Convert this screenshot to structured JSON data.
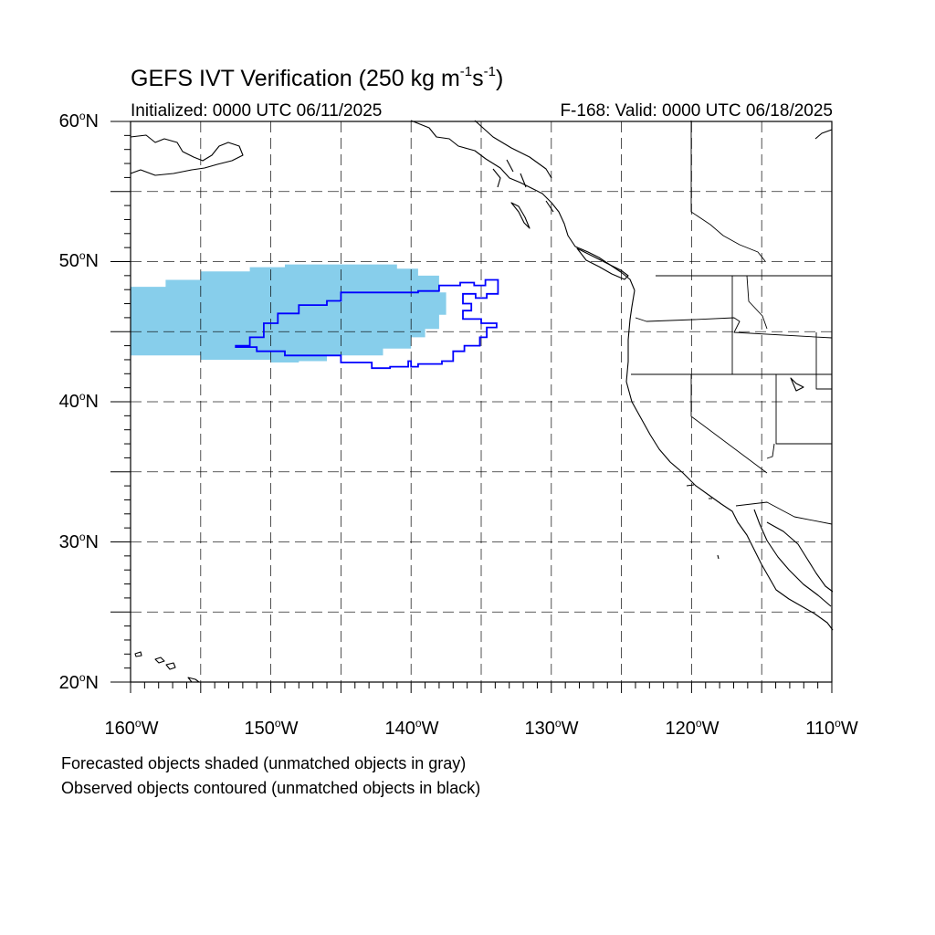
{
  "title": {
    "prefix": "GEFS IVT Verification (250 kg m",
    "exp1": "-1",
    "mid": "s",
    "exp2": "-1",
    "suffix": ")"
  },
  "subtitle": {
    "initialized": "Initialized: 0000 UTC 06/11/2025",
    "valid": "F-168: Valid: 0000 UTC 06/18/2025"
  },
  "map": {
    "lon_range": [
      -160,
      -110
    ],
    "lat_range": [
      20,
      60
    ],
    "grid": "dashed",
    "lat_labels": [
      {
        "num": "60",
        "hemi": "N"
      },
      {
        "num": "50",
        "hemi": "N"
      },
      {
        "num": "40",
        "hemi": "N"
      },
      {
        "num": "30",
        "hemi": "N"
      },
      {
        "num": "20",
        "hemi": "N"
      }
    ],
    "lon_labels": [
      {
        "num": "160",
        "hemi": "W"
      },
      {
        "num": "150",
        "hemi": "W"
      },
      {
        "num": "140",
        "hemi": "W"
      },
      {
        "num": "130",
        "hemi": "W"
      },
      {
        "num": "120",
        "hemi": "W"
      },
      {
        "num": "110",
        "hemi": "W"
      }
    ],
    "forecast_object_color": "#87ceeb",
    "observed_contour_color": "#0000ff",
    "coastline_color": "#000000",
    "forecast_object_lonlat": [
      [
        -160,
        48.2
      ],
      [
        -157.5,
        48.2
      ],
      [
        -157.5,
        48.7
      ],
      [
        -155,
        48.7
      ],
      [
        -155,
        49.3
      ],
      [
        -151.5,
        49.3
      ],
      [
        -151.5,
        49.6
      ],
      [
        -149,
        49.6
      ],
      [
        -149,
        49.8
      ],
      [
        -141,
        49.8
      ],
      [
        -141,
        49.5
      ],
      [
        -139.5,
        49.5
      ],
      [
        -139.5,
        49.0
      ],
      [
        -138,
        49.0
      ],
      [
        -138,
        47.8
      ],
      [
        -137.5,
        47.8
      ],
      [
        -137.5,
        46.2
      ],
      [
        -138,
        46.2
      ],
      [
        -138,
        45.2
      ],
      [
        -139,
        45.2
      ],
      [
        -139,
        44.6
      ],
      [
        -140,
        44.6
      ],
      [
        -140,
        43.8
      ],
      [
        -142,
        43.8
      ],
      [
        -142,
        43.3
      ],
      [
        -146,
        43.3
      ],
      [
        -146,
        42.9
      ],
      [
        -148,
        42.9
      ],
      [
        -148,
        42.8
      ],
      [
        -150,
        42.8
      ],
      [
        -150,
        43.0
      ],
      [
        -155,
        43.0
      ],
      [
        -155,
        43.3
      ],
      [
        -160,
        43.3
      ]
    ],
    "observed_object_lonlat": [
      [
        -152.5,
        44.0
      ],
      [
        -151.5,
        44.0
      ],
      [
        -151.5,
        44.6
      ],
      [
        -150.5,
        44.6
      ],
      [
        -150.5,
        45.6
      ],
      [
        -149.5,
        45.6
      ],
      [
        -149.5,
        46.3
      ],
      [
        -148.0,
        46.3
      ],
      [
        -148.0,
        46.9
      ],
      [
        -146.0,
        46.9
      ],
      [
        -146.0,
        47.2
      ],
      [
        -145.0,
        47.2
      ],
      [
        -145.0,
        47.8
      ],
      [
        -139.5,
        47.8
      ],
      [
        -139.5,
        47.9
      ],
      [
        -138.0,
        47.9
      ],
      [
        -138.0,
        48.3
      ],
      [
        -136.5,
        48.3
      ],
      [
        -136.5,
        48.5
      ],
      [
        -135.5,
        48.5
      ],
      [
        -135.5,
        48.3
      ],
      [
        -134.7,
        48.3
      ],
      [
        -134.7,
        48.7
      ],
      [
        -133.8,
        48.7
      ],
      [
        -133.8,
        47.7
      ],
      [
        -134.6,
        47.7
      ],
      [
        -134.6,
        47.4
      ],
      [
        -135.4,
        47.4
      ],
      [
        -135.4,
        47.7
      ],
      [
        -136.3,
        47.7
      ],
      [
        -136.3,
        47.0
      ],
      [
        -135.7,
        47.0
      ],
      [
        -135.7,
        46.5
      ],
      [
        -136.3,
        46.5
      ],
      [
        -136.3,
        45.9
      ],
      [
        -135.0,
        45.9
      ],
      [
        -135.0,
        45.6
      ],
      [
        -133.9,
        45.6
      ],
      [
        -133.9,
        45.3
      ],
      [
        -134.6,
        45.3
      ],
      [
        -134.6,
        44.6
      ],
      [
        -135.1,
        44.6
      ],
      [
        -135.1,
        44.0
      ],
      [
        -136.2,
        44.0
      ],
      [
        -136.2,
        43.6
      ],
      [
        -137.0,
        43.6
      ],
      [
        -137.0,
        42.9
      ],
      [
        -137.8,
        42.9
      ],
      [
        -137.8,
        42.7
      ],
      [
        -139.5,
        42.7
      ],
      [
        -139.5,
        42.5
      ],
      [
        -140.0,
        42.5
      ],
      [
        -140.0,
        42.9
      ],
      [
        -140.2,
        42.9
      ],
      [
        -140.2,
        42.5
      ],
      [
        -141.5,
        42.5
      ],
      [
        -141.5,
        42.4
      ],
      [
        -142.8,
        42.4
      ],
      [
        -142.8,
        42.8
      ],
      [
        -145.0,
        42.8
      ],
      [
        -145.0,
        43.3
      ],
      [
        -149.0,
        43.3
      ],
      [
        -149.0,
        43.6
      ],
      [
        -151.0,
        43.6
      ],
      [
        -151.0,
        43.9
      ],
      [
        -152.5,
        43.9
      ]
    ]
  },
  "notes": {
    "forecast": "Forecasted objects shaded (unmatched objects in gray)",
    "observed": "Observed objects contoured (unmatched objects in black)"
  }
}
